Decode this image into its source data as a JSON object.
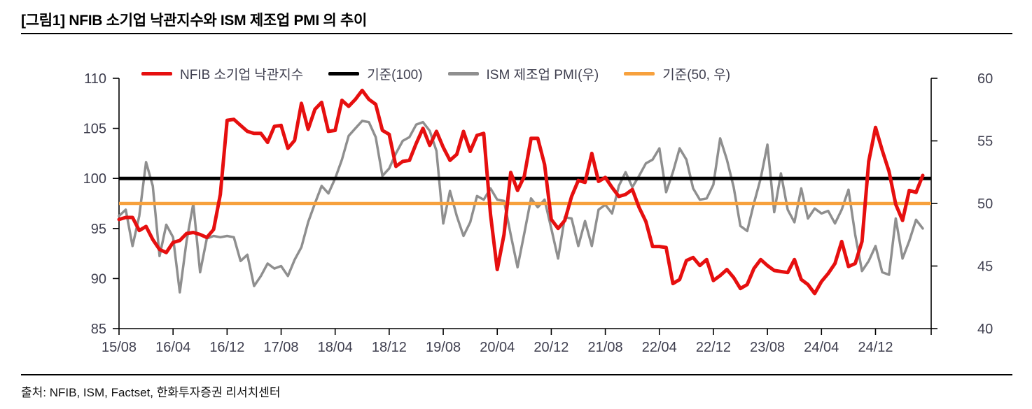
{
  "header": {
    "title": "[그림1] NFIB 소기업 낙관지수와 ISM 제조업 PMI 의 추이"
  },
  "footer": {
    "source": "출처: NFIB, ISM, Factset, 한화투자증권 리서치센터"
  },
  "colors": {
    "nfib_red": "#e60f0f",
    "ism_gray": "#8f8f8f",
    "baseline_black": "#000000",
    "baseline_orange": "#f7a13d",
    "axis_text": "#3f3f4f",
    "axis_line": "#000000"
  },
  "chart_data": {
    "type": "line",
    "title": "[그림1] NFIB 소기업 낙관지수와 ISM 제조업 PMI 의 추이",
    "x": [
      "15/08",
      "15/09",
      "15/10",
      "15/11",
      "15/12",
      "16/01",
      "16/02",
      "16/03",
      "16/04",
      "16/05",
      "16/06",
      "16/07",
      "16/08",
      "16/09",
      "16/10",
      "16/11",
      "16/12",
      "17/01",
      "17/02",
      "17/03",
      "17/04",
      "17/05",
      "17/06",
      "17/07",
      "17/08",
      "17/09",
      "17/10",
      "17/11",
      "17/12",
      "18/01",
      "18/02",
      "18/03",
      "18/04",
      "18/05",
      "18/06",
      "18/07",
      "18/08",
      "18/09",
      "18/10",
      "18/11",
      "18/12",
      "19/01",
      "19/02",
      "19/03",
      "19/04",
      "19/05",
      "19/06",
      "19/07",
      "19/08",
      "19/09",
      "19/10",
      "19/11",
      "19/12",
      "20/01",
      "20/02",
      "20/03",
      "20/04",
      "20/05",
      "20/06",
      "20/07",
      "20/08",
      "20/09",
      "20/10",
      "20/11",
      "20/12",
      "21/01",
      "21/02",
      "21/03",
      "21/04",
      "21/05",
      "21/06",
      "21/07",
      "21/08",
      "21/09",
      "21/10",
      "21/11",
      "21/12",
      "22/01",
      "22/02",
      "22/03",
      "22/04",
      "22/05",
      "22/06",
      "22/07",
      "22/08",
      "22/09",
      "22/10",
      "22/11",
      "22/12",
      "23/01",
      "23/02",
      "23/03",
      "23/04",
      "23/05",
      "23/06",
      "23/07",
      "23/08",
      "23/09",
      "23/10",
      "23/11",
      "23/12",
      "24/01",
      "24/02",
      "24/03",
      "24/04",
      "24/05",
      "24/06",
      "24/07",
      "24/08",
      "24/09",
      "24/10",
      "24/11",
      "24/12",
      "25/01",
      "25/02",
      "25/03",
      "25/04",
      "25/05",
      "25/06",
      "25/07"
    ],
    "x_ticks": [
      {
        "i": 0,
        "label": "15/08"
      },
      {
        "i": 8,
        "label": "16/04"
      },
      {
        "i": 16,
        "label": "16/12"
      },
      {
        "i": 24,
        "label": "17/08"
      },
      {
        "i": 32,
        "label": "18/04"
      },
      {
        "i": 40,
        "label": "18/12"
      },
      {
        "i": 48,
        "label": "19/08"
      },
      {
        "i": 56,
        "label": "20/04"
      },
      {
        "i": 64,
        "label": "20/12"
      },
      {
        "i": 72,
        "label": "21/08"
      },
      {
        "i": 80,
        "label": "22/04"
      },
      {
        "i": 88,
        "label": "22/12"
      },
      {
        "i": 96,
        "label": "23/08"
      },
      {
        "i": 104,
        "label": "24/04"
      },
      {
        "i": 112,
        "label": "24/12"
      }
    ],
    "left_axis": {
      "min": 85,
      "max": 110,
      "ticks": [
        110,
        105,
        100,
        95,
        90,
        85
      ]
    },
    "right_axis": {
      "min": 40,
      "max": 60,
      "ticks": [
        60,
        55,
        50,
        45,
        40
      ]
    },
    "series": [
      {
        "name": "NFIB 소기업 낙관지수",
        "axis": "left",
        "color": "#e60f0f",
        "width": 5,
        "values": [
          95.9,
          96.1,
          96.1,
          94.8,
          95.2,
          93.9,
          92.9,
          92.6,
          93.6,
          93.8,
          94.5,
          94.6,
          94.4,
          94.1,
          94.9,
          98.4,
          105.8,
          105.9,
          105.3,
          104.7,
          104.5,
          104.5,
          103.6,
          105.2,
          105.3,
          103.0,
          103.8,
          107.5,
          104.9,
          106.9,
          107.6,
          104.7,
          104.8,
          107.8,
          107.2,
          107.9,
          108.8,
          107.9,
          107.4,
          104.8,
          104.4,
          101.2,
          101.7,
          101.8,
          103.5,
          105.0,
          103.3,
          104.7,
          103.1,
          101.8,
          102.4,
          104.7,
          102.7,
          104.3,
          104.5,
          96.4,
          90.9,
          94.4,
          100.6,
          98.8,
          100.2,
          104.0,
          104.0,
          101.4,
          95.9,
          95.0,
          95.8,
          98.2,
          99.8,
          99.6,
          102.5,
          99.7,
          100.1,
          99.1,
          98.2,
          98.4,
          98.9,
          97.1,
          95.7,
          93.2,
          93.2,
          93.1,
          89.5,
          89.9,
          91.8,
          92.1,
          91.3,
          91.9,
          89.8,
          90.3,
          90.9,
          90.1,
          89.0,
          89.4,
          91.0,
          91.9,
          91.3,
          90.8,
          90.7,
          90.6,
          91.9,
          89.9,
          89.4,
          88.5,
          89.7,
          90.5,
          91.5,
          93.7,
          91.2,
          91.5,
          93.7,
          101.7,
          105.1,
          102.8,
          100.7,
          97.4,
          95.8,
          98.8,
          98.6,
          100.3
        ]
      },
      {
        "name": "ISM 제조업 PMI(우)",
        "axis": "right",
        "color": "#8f8f8f",
        "width": 3.5,
        "values": [
          49.0,
          49.5,
          46.6,
          49.0,
          53.3,
          51.4,
          45.8,
          48.3,
          47.3,
          42.9,
          47.0,
          50.0,
          44.5,
          47.2,
          47.4,
          47.3,
          47.4,
          47.3,
          45.4,
          45.9,
          43.4,
          44.2,
          45.2,
          44.8,
          45.0,
          44.2,
          45.5,
          46.5,
          48.5,
          50.0,
          51.4,
          50.8,
          52.0,
          53.5,
          55.4,
          56.0,
          56.6,
          56.5,
          55.3,
          52.2,
          52.8,
          54.0,
          55.0,
          55.3,
          56.3,
          56.5,
          55.8,
          54.2,
          48.4,
          51.0,
          49.0,
          47.4,
          48.5,
          50.6,
          50.3,
          51.2,
          50.3,
          50.2,
          47.5,
          44.9,
          47.6,
          50.4,
          49.7,
          50.3,
          48.0,
          45.6,
          48.9,
          48.8,
          46.6,
          48.6,
          46.6,
          49.5,
          49.9,
          49.2,
          51.4,
          52.5,
          51.3,
          52.2,
          53.2,
          53.5,
          54.4,
          50.9,
          52.5,
          54.4,
          53.5,
          51.2,
          50.3,
          50.4,
          51.5,
          55.2,
          53.5,
          51.3,
          48.2,
          47.8,
          50.0,
          52.0,
          54.7,
          49.3,
          52.4,
          49.5,
          48.5,
          51.2,
          48.8,
          49.6,
          49.2,
          49.4,
          48.4,
          49.5,
          51.1,
          47.5,
          44.6,
          45.4,
          46.6,
          44.5,
          44.3,
          48.8,
          45.6,
          47.0,
          48.7,
          48.0
        ]
      }
    ],
    "reference_lines": [
      {
        "label": "기준(100)",
        "axis": "left",
        "value": 100,
        "color": "#000000",
        "width": 5
      },
      {
        "label": "기준(50, 우)",
        "axis": "right",
        "value": 50,
        "color": "#f7a13d",
        "width": 4.5
      }
    ],
    "legend": [
      {
        "label": "NFIB 소기업 낙관지수",
        "color": "#e60f0f"
      },
      {
        "label": "기준(100)",
        "color": "#000000"
      },
      {
        "label": "ISM 제조업 PMI(우)",
        "color": "#8f8f8f"
      },
      {
        "label": "기준(50, 우)",
        "color": "#f7a13d"
      }
    ],
    "layout_hints": {
      "grid": false,
      "legend_position": "top",
      "x_tick_step_months": 8
    }
  }
}
